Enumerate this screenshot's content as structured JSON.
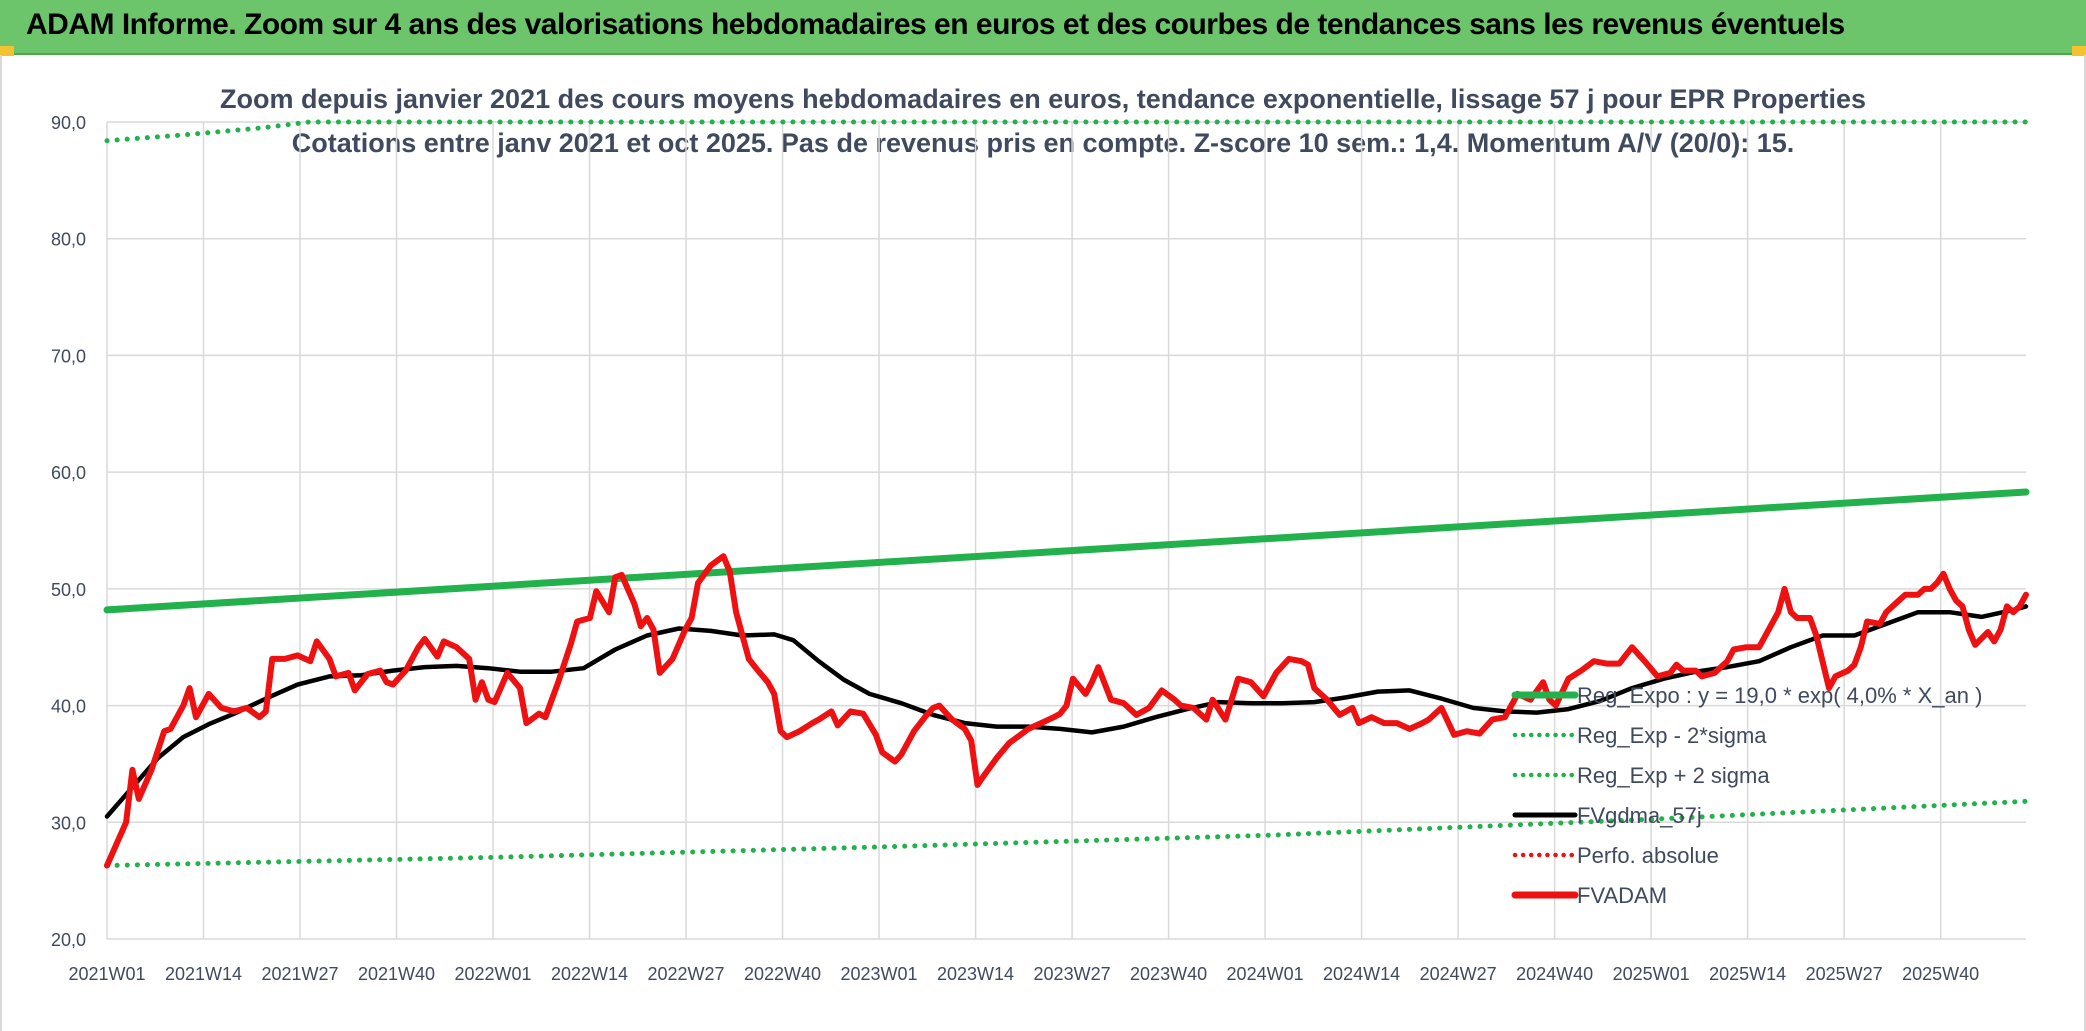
{
  "banner": {
    "title": "ADAM Informe. Zoom sur 4 ans des valorisations hebdomadaires en euros et des courbes de tendances sans les revenus éventuels"
  },
  "colors": {
    "banner": "#6cc56a",
    "regression": "#22b14c",
    "price": "#ee1111",
    "smoothed": "#000000",
    "grid": "#d9d9d9"
  },
  "chart_data": {
    "type": "line",
    "title_line1": "Zoom depuis janvier 2021 des cours moyens hebdomadaires en euros, tendance exponentielle, lissage 57 j pour EPR Properties",
    "title_line2": "Cotations entre janv 2021 et oct 2025. Pas de revenus pris en compte. Z-score 10 sem.: 1,4. Momentum A/V (20/0): 15.",
    "ylim": [
      20,
      90
    ],
    "yticks": [
      "20,0",
      "30,0",
      "40,0",
      "50,0",
      "60,0",
      "70,0",
      "80,0",
      "90,0"
    ],
    "x_tick_labels": [
      "2021W01",
      "2021W14",
      "2021W27",
      "2021W40",
      "2022W01",
      "2022W14",
      "2022W27",
      "2022W40",
      "2023W01",
      "2023W14",
      "2023W27",
      "2023W40",
      "2024W01",
      "2024W14",
      "2024W27",
      "2024W40",
      "2025W01",
      "2025W14",
      "2025W27",
      "2025W40"
    ],
    "x_range_weeks": [
      0,
      247
    ],
    "grid": true,
    "legend_position": "right",
    "series": [
      {
        "name": "Reg_Expo : y = 19,0 * exp( 4,0% *  X_an )",
        "style": "solid-thick",
        "color": "#22b14c",
        "points": [
          [
            0,
            48.2
          ],
          [
            247,
            58.3
          ]
        ]
      },
      {
        "name": "Reg_Exp - 2*sigma",
        "style": "dotted",
        "color": "#22b14c",
        "points": [
          [
            0,
            26.3
          ],
          [
            50,
            27.0
          ],
          [
            100,
            27.9
          ],
          [
            150,
            28.9
          ],
          [
            200,
            30.3
          ],
          [
            247,
            31.8
          ]
        ]
      },
      {
        "name": "Reg_Exp + 2 sigma",
        "style": "dotted",
        "color": "#22b14c",
        "points": [
          [
            0,
            88.4
          ],
          [
            10,
            88.9
          ],
          [
            20,
            89.5
          ],
          [
            26,
            90.0
          ],
          [
            237,
            90.0
          ],
          [
            247,
            90.0
          ]
        ]
      },
      {
        "name": "FVgdma_57j",
        "style": "solid",
        "color": "#000000",
        "points": [
          [
            0,
            30.5
          ],
          [
            4,
            33
          ],
          [
            8,
            35.5
          ],
          [
            12,
            37.3
          ],
          [
            16,
            38.4
          ],
          [
            20,
            39.3
          ],
          [
            25,
            40.6
          ],
          [
            30,
            41.8
          ],
          [
            35,
            42.5
          ],
          [
            40,
            42.6
          ],
          [
            45,
            43.0
          ],
          [
            50,
            43.3
          ],
          [
            55,
            43.4
          ],
          [
            60,
            43.2
          ],
          [
            65,
            42.9
          ],
          [
            70,
            42.9
          ],
          [
            75,
            43.2
          ],
          [
            80,
            44.8
          ],
          [
            85,
            46.0
          ],
          [
            90,
            46.6
          ],
          [
            95,
            46.4
          ],
          [
            100,
            46.0
          ],
          [
            105,
            46.1
          ],
          [
            108,
            45.6
          ],
          [
            112,
            43.8
          ],
          [
            116,
            42.2
          ],
          [
            120,
            41.0
          ],
          [
            125,
            40.2
          ],
          [
            130,
            39.2
          ],
          [
            135,
            38.5
          ],
          [
            140,
            38.2
          ],
          [
            145,
            38.2
          ],
          [
            150,
            38.0
          ],
          [
            155,
            37.7
          ],
          [
            160,
            38.2
          ],
          [
            165,
            39.0
          ],
          [
            170,
            39.7
          ],
          [
            175,
            40.3
          ],
          [
            180,
            40.2
          ],
          [
            185,
            40.2
          ],
          [
            190,
            40.3
          ],
          [
            195,
            40.7
          ],
          [
            200,
            41.2
          ],
          [
            205,
            41.3
          ],
          [
            210,
            40.6
          ],
          [
            215,
            39.8
          ],
          [
            220,
            39.5
          ],
          [
            225,
            39.4
          ],
          [
            230,
            39.7
          ],
          [
            235,
            40.4
          ],
          [
            240,
            41.5
          ],
          [
            245,
            42.3
          ],
          [
            250,
            42.9
          ],
          [
            255,
            43.3
          ],
          [
            260,
            43.8
          ],
          [
            265,
            45.0
          ],
          [
            270,
            46.0
          ],
          [
            275,
            46.0
          ],
          [
            280,
            47.0
          ],
          [
            285,
            48.0
          ],
          [
            290,
            48.0
          ],
          [
            295,
            47.6
          ],
          [
            300,
            48.2
          ],
          [
            302,
            48.5
          ]
        ]
      },
      {
        "name": "Perfo. absolue",
        "style": "dotted",
        "color": "#ee1111",
        "points": []
      },
      {
        "name": "FVADAM",
        "style": "solid-thick",
        "color": "#ee1111",
        "points": [
          [
            0,
            26.3
          ],
          [
            3,
            30
          ],
          [
            4,
            34.5
          ],
          [
            5,
            32
          ],
          [
            7,
            34.5
          ],
          [
            9,
            37.8
          ],
          [
            10,
            38
          ],
          [
            12,
            40
          ],
          [
            13,
            41.5
          ],
          [
            14,
            39
          ],
          [
            16,
            41
          ],
          [
            18,
            39.8
          ],
          [
            20,
            39.5
          ],
          [
            22,
            39.8
          ],
          [
            24,
            39
          ],
          [
            25,
            39.5
          ],
          [
            26,
            44
          ],
          [
            28,
            44
          ],
          [
            30,
            44.3
          ],
          [
            32,
            43.8
          ],
          [
            33,
            45.5
          ],
          [
            35,
            44
          ],
          [
            36,
            42.5
          ],
          [
            38,
            42.8
          ],
          [
            39,
            41.3
          ],
          [
            41,
            42.7
          ],
          [
            43,
            43
          ],
          [
            44,
            42
          ],
          [
            45,
            41.8
          ],
          [
            47,
            43
          ],
          [
            49,
            45
          ],
          [
            50,
            45.7
          ],
          [
            52,
            44.2
          ],
          [
            53,
            45.5
          ],
          [
            55,
            45
          ],
          [
            57,
            44
          ],
          [
            58,
            40.5
          ],
          [
            59,
            42
          ],
          [
            60,
            40.5
          ],
          [
            61,
            40.3
          ],
          [
            63,
            42.8
          ],
          [
            65,
            41.5
          ],
          [
            66,
            38.5
          ],
          [
            68,
            39.3
          ],
          [
            69,
            39
          ],
          [
            71,
            42
          ],
          [
            73,
            45.3
          ],
          [
            74,
            47.2
          ],
          [
            76,
            47.5
          ],
          [
            77,
            49.8
          ],
          [
            79,
            48
          ],
          [
            80,
            51
          ],
          [
            81,
            51.2
          ],
          [
            83,
            48.7
          ],
          [
            84,
            46.8
          ],
          [
            85,
            47.5
          ],
          [
            86,
            46.5
          ],
          [
            87,
            42.8
          ],
          [
            89,
            44
          ],
          [
            91,
            46.5
          ],
          [
            92,
            47.5
          ],
          [
            93,
            50.5
          ],
          [
            95,
            52
          ],
          [
            97,
            52.8
          ],
          [
            98,
            51.5
          ],
          [
            99,
            48
          ],
          [
            101,
            44
          ],
          [
            102,
            43.3
          ],
          [
            104,
            42
          ],
          [
            105,
            41
          ],
          [
            106,
            37.8
          ],
          [
            107,
            37.3
          ],
          [
            109,
            37.8
          ],
          [
            111,
            38.5
          ],
          [
            112,
            38.8
          ],
          [
            114,
            39.5
          ],
          [
            115,
            38.3
          ],
          [
            117,
            39.5
          ],
          [
            119,
            39.3
          ],
          [
            121,
            37.5
          ],
          [
            122,
            36
          ],
          [
            124,
            35.2
          ],
          [
            125,
            35.8
          ],
          [
            127,
            37.8
          ],
          [
            129,
            39.2
          ],
          [
            130,
            39.8
          ],
          [
            131,
            40
          ],
          [
            133,
            38.8
          ],
          [
            135,
            38
          ],
          [
            136,
            37
          ],
          [
            137,
            33.2
          ],
          [
            138,
            34
          ],
          [
            140,
            35.5
          ],
          [
            142,
            36.8
          ],
          [
            143,
            37.2
          ],
          [
            145,
            38
          ],
          [
            147,
            38.5
          ],
          [
            149,
            39
          ],
          [
            150,
            39.3
          ],
          [
            151,
            40
          ],
          [
            152,
            42.3
          ],
          [
            154,
            41
          ],
          [
            155,
            42
          ],
          [
            156,
            43.3
          ],
          [
            158,
            40.5
          ],
          [
            160,
            40.2
          ],
          [
            162,
            39.2
          ],
          [
            164,
            39.8
          ],
          [
            166,
            41.3
          ],
          [
            168,
            40.5
          ],
          [
            169,
            40
          ],
          [
            171,
            39.8
          ],
          [
            173,
            38.8
          ],
          [
            174,
            40.5
          ],
          [
            176,
            38.8
          ],
          [
            178,
            42.3
          ],
          [
            180,
            42
          ],
          [
            182,
            40.8
          ],
          [
            184,
            42.8
          ],
          [
            186,
            44
          ],
          [
            188,
            43.8
          ],
          [
            189,
            43.5
          ],
          [
            190,
            41.5
          ],
          [
            192,
            40.5
          ],
          [
            194,
            39.2
          ],
          [
            196,
            39.8
          ],
          [
            197,
            38.5
          ],
          [
            199,
            39
          ],
          [
            201,
            38.5
          ],
          [
            203,
            38.5
          ],
          [
            205,
            38
          ],
          [
            207,
            38.5
          ],
          [
            208,
            38.8
          ],
          [
            210,
            39.8
          ],
          [
            212,
            37.5
          ],
          [
            214,
            37.8
          ],
          [
            216,
            37.6
          ],
          [
            218,
            38.8
          ],
          [
            220,
            39
          ],
          [
            222,
            41
          ],
          [
            224,
            40.5
          ],
          [
            226,
            42
          ],
          [
            227,
            40.5
          ],
          [
            228,
            40
          ],
          [
            230,
            42.3
          ],
          [
            232,
            43
          ],
          [
            234,
            43.8
          ],
          [
            236,
            43.6
          ],
          [
            238,
            43.6
          ],
          [
            240,
            45
          ],
          [
            242,
            43.8
          ],
          [
            244,
            42.5
          ],
          [
            246,
            42.8
          ],
          [
            247,
            43.5
          ],
          [
            248,
            43
          ],
          [
            250,
            43
          ],
          [
            251,
            42.5
          ],
          [
            253,
            42.8
          ],
          [
            255,
            43.8
          ],
          [
            256,
            44.8
          ],
          [
            258,
            45
          ],
          [
            260,
            45
          ],
          [
            262,
            47
          ],
          [
            263,
            48
          ],
          [
            264,
            50
          ],
          [
            265,
            48
          ],
          [
            266,
            47.5
          ],
          [
            268,
            47.5
          ],
          [
            269,
            46
          ],
          [
            271,
            41.5
          ],
          [
            272,
            42.5
          ],
          [
            274,
            43
          ],
          [
            275,
            43.5
          ],
          [
            276,
            45
          ],
          [
            277,
            47.2
          ],
          [
            279,
            47
          ],
          [
            280,
            48
          ],
          [
            282,
            49
          ],
          [
            283,
            49.5
          ],
          [
            285,
            49.5
          ],
          [
            286,
            50
          ],
          [
            287,
            50
          ],
          [
            288,
            50.5
          ],
          [
            289,
            51.3
          ],
          [
            290,
            50
          ],
          [
            291,
            49
          ],
          [
            292,
            48.5
          ],
          [
            293,
            46.5
          ],
          [
            294,
            45.2
          ],
          [
            296,
            46.3
          ],
          [
            297,
            45.5
          ],
          [
            298,
            46.5
          ],
          [
            299,
            48.5
          ],
          [
            300,
            48
          ],
          [
            301,
            48.5
          ],
          [
            302,
            49.5
          ]
        ]
      }
    ]
  }
}
